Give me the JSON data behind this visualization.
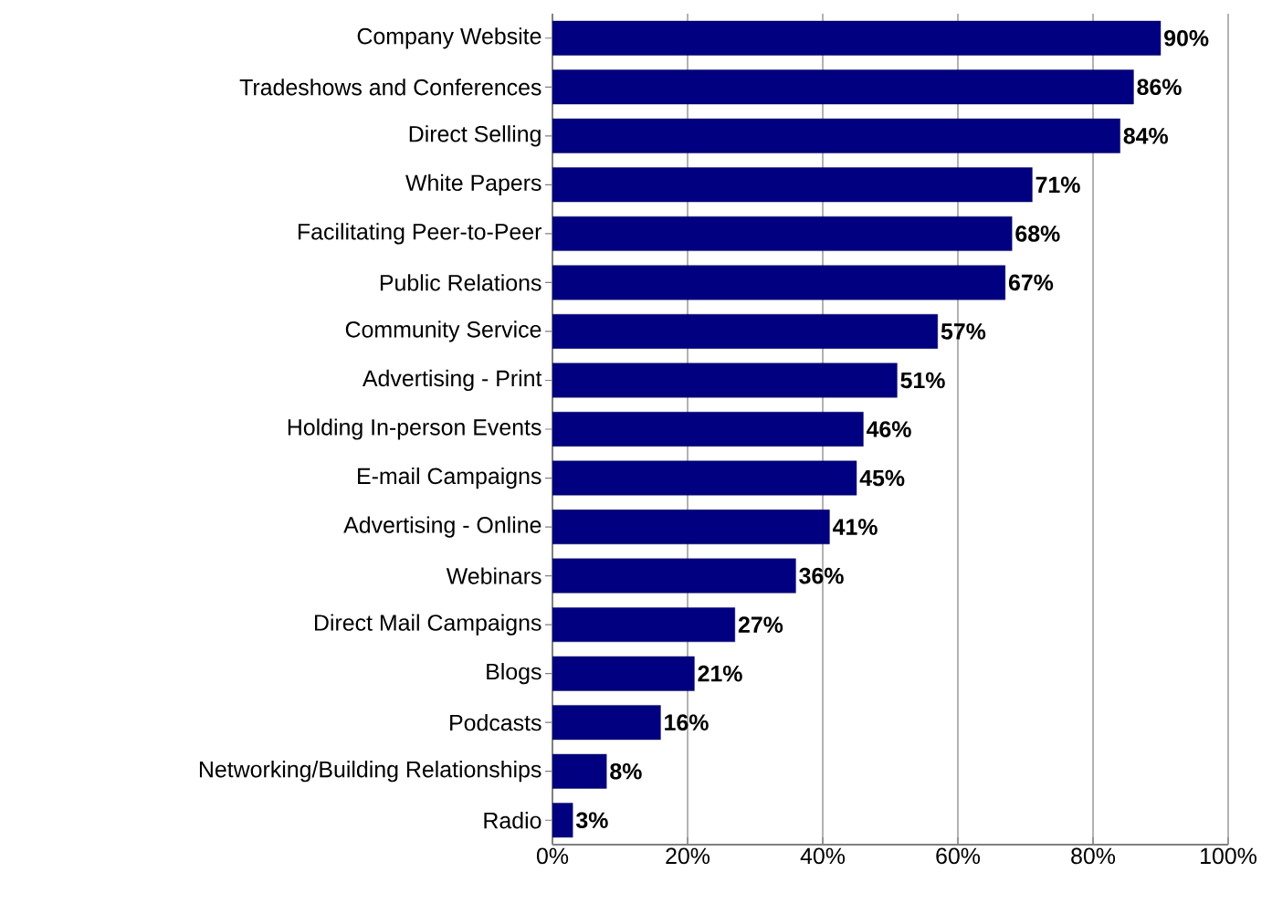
{
  "chart_data": {
    "type": "bar",
    "orientation": "horizontal",
    "categories": [
      "Company Website",
      "Tradeshows and Conferences",
      "Direct Selling",
      "White Papers",
      "Facilitating Peer-to-Peer",
      "Public Relations",
      "Community Service",
      "Advertising - Print",
      "Holding In-person Events",
      "E-mail Campaigns",
      "Advertising - Online",
      "Webinars",
      "Direct Mail Campaigns",
      "Blogs",
      "Podcasts",
      "Networking/Building Relationships",
      "Radio"
    ],
    "values": [
      90,
      86,
      84,
      71,
      68,
      67,
      57,
      51,
      46,
      45,
      41,
      36,
      27,
      21,
      16,
      8,
      3
    ],
    "value_labels": [
      "90%",
      "86%",
      "84%",
      "71%",
      "68%",
      "67%",
      "57%",
      "51%",
      "46%",
      "45%",
      "41%",
      "36%",
      "27%",
      "21%",
      "16%",
      "8%",
      "3%"
    ],
    "color": "#000080",
    "xlim": [
      0,
      100
    ],
    "xticks": [
      {
        "value": 0,
        "label": "0%"
      },
      {
        "value": 20,
        "label": "20%"
      },
      {
        "value": 40,
        "label": "40%"
      },
      {
        "value": 60,
        "label": "60%"
      },
      {
        "value": 80,
        "label": "80%"
      },
      {
        "value": 100,
        "label": "100%"
      }
    ],
    "grid": "x"
  }
}
